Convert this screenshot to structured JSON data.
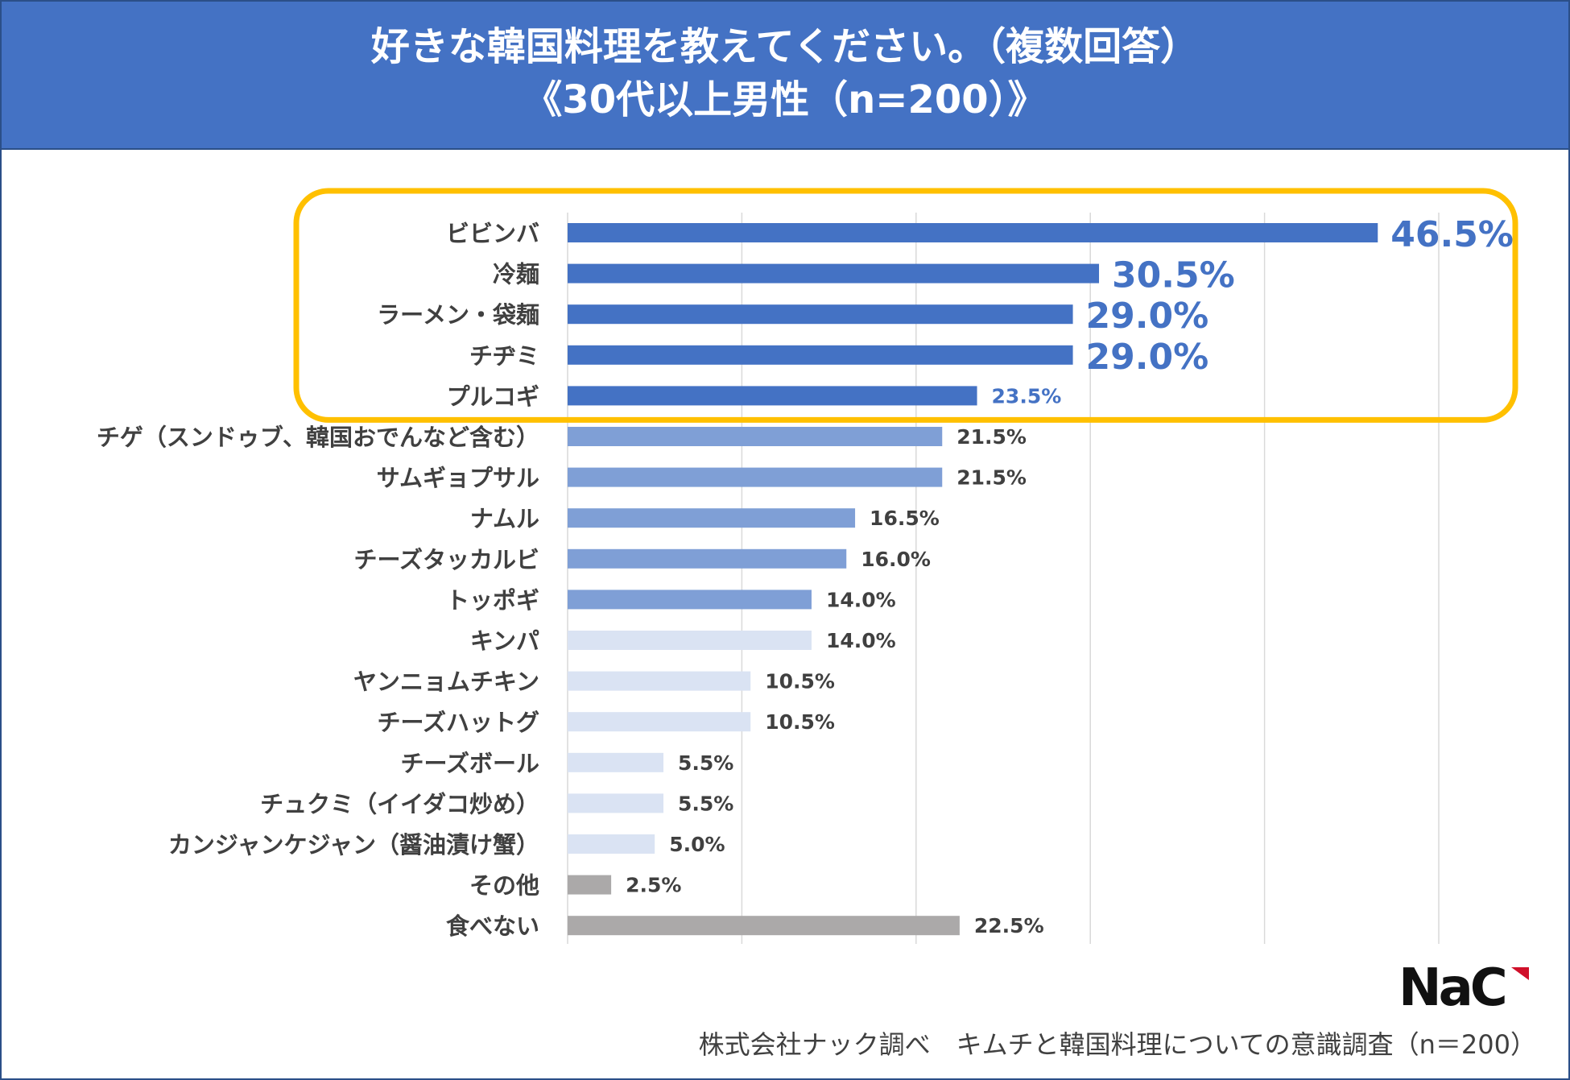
{
  "header": {
    "title_line1": "好きな韓国料理を教えてください。（複数回答）",
    "title_line2": "《30代以上男性（n=200）》"
  },
  "chart_data": {
    "type": "bar",
    "orientation": "horizontal",
    "title": "好きな韓国料理を教えてください。（複数回答）《30代以上男性（n=200）》",
    "xlim": [
      0,
      50
    ],
    "grid": true,
    "unit": "%",
    "categories": [
      "ビビンバ",
      "冷麺",
      "ラーメン・袋麺",
      "チヂミ",
      "プルコギ",
      "チゲ（スンドゥブ、韓国おでんなど含む）",
      "サムギョプサル",
      "ナムル",
      "チーズタッカルビ",
      "トッポギ",
      "キンパ",
      "ヤンニョムチキン",
      "チーズハットグ",
      "チーズボール",
      "チュクミ（イイダコ炒め）",
      "カンジャンケジャン（醤油漬け蟹）",
      "その他",
      "食べない"
    ],
    "values": [
      46.5,
      30.5,
      29.0,
      29.0,
      23.5,
      21.5,
      21.5,
      16.5,
      16.0,
      14.0,
      14.0,
      10.5,
      10.5,
      5.5,
      5.5,
      5.0,
      2.5,
      22.5
    ],
    "value_labels": [
      "46.5%",
      "30.5%",
      "29.0%",
      "29.0%",
      "23.5%",
      "21.5%",
      "21.5%",
      "16.5%",
      "16.0%",
      "14.0%",
      "14.0%",
      "10.5%",
      "10.5%",
      "5.5%",
      "5.5%",
      "5.0%",
      "2.5%",
      "22.5%"
    ],
    "tiers": [
      "top",
      "top",
      "top",
      "top",
      "top",
      "mid",
      "mid",
      "mid",
      "mid",
      "mid",
      "low",
      "low",
      "low",
      "low",
      "low",
      "low",
      "other",
      "other"
    ],
    "highlight": {
      "from_index": 0,
      "to_index": 4
    }
  },
  "colors": {
    "header_bg": "#4472c4",
    "top": "#4472c4",
    "mid": "#7f9fd6",
    "low": "#dae3f3",
    "other": "#aba9a9",
    "highlight_box": "#ffc000",
    "grid": "#d9d9d9"
  },
  "footer": {
    "logo_text": "NaC",
    "source": "株式会社ナック調べ　キムチと韓国料理についての意識調査（n＝200）"
  }
}
